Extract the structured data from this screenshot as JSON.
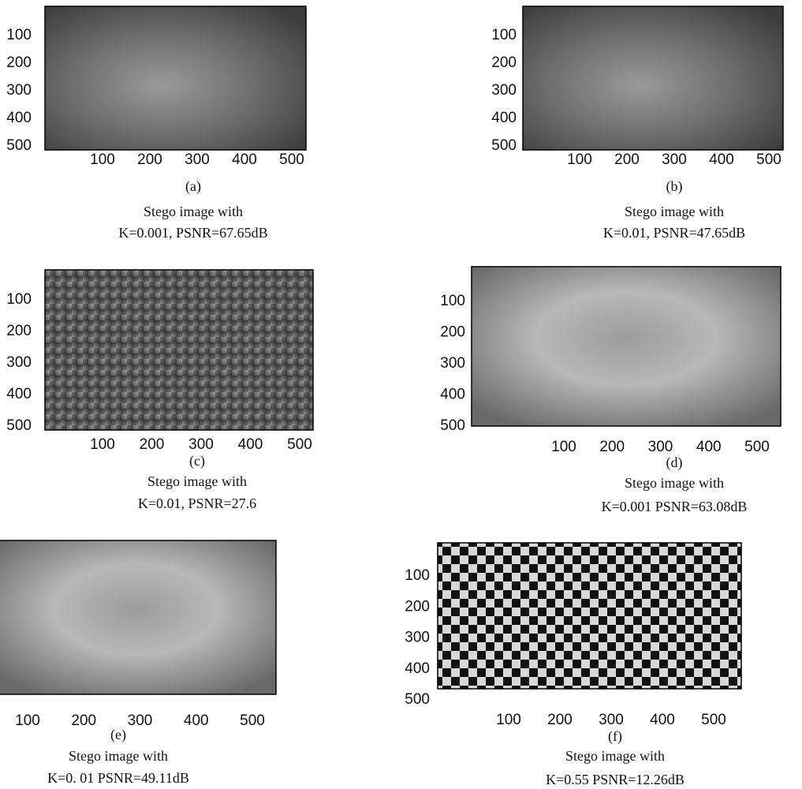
{
  "panels": [
    {
      "label": "(a)",
      "caption": [
        "Stego image with",
        "K=0.001, PSNR=67.65dB"
      ],
      "yticks": [
        100,
        200,
        300,
        400,
        500
      ],
      "xticks": [
        100,
        200,
        300,
        400,
        500
      ]
    },
    {
      "label": "(b)",
      "caption": [
        "Stego image with",
        "K=0.01, PSNR=47.65dB"
      ],
      "yticks": [
        100,
        200,
        300,
        400,
        500
      ],
      "xticks": [
        100,
        200,
        300,
        400,
        500
      ]
    },
    {
      "label": "(c)",
      "caption": [
        "Stego image with",
        "K=0.01, PSNR=27.6"
      ],
      "yticks": [
        100,
        200,
        300,
        400,
        500
      ],
      "xticks": [
        100,
        200,
        300,
        400,
        500
      ]
    },
    {
      "label": "(d)",
      "caption": [
        "Stego image with",
        "K=0.001 PSNR=63.08dB"
      ],
      "yticks": [
        100,
        200,
        300,
        400,
        500
      ],
      "xticks": [
        100,
        200,
        300,
        400,
        500
      ]
    },
    {
      "label": "(e)",
      "caption": [
        "Stego image with",
        "K=0. 01 PSNR=49.11dB"
      ],
      "yticks": [],
      "xticks": [
        100,
        200,
        300,
        400,
        500
      ]
    },
    {
      "label": "(f)",
      "caption": [
        "Stego image with",
        "K=0.55 PSNR=12.26dB"
      ],
      "yticks": [
        100,
        200,
        300,
        400,
        500
      ],
      "xticks": [
        100,
        200,
        300,
        400,
        500
      ]
    }
  ]
}
